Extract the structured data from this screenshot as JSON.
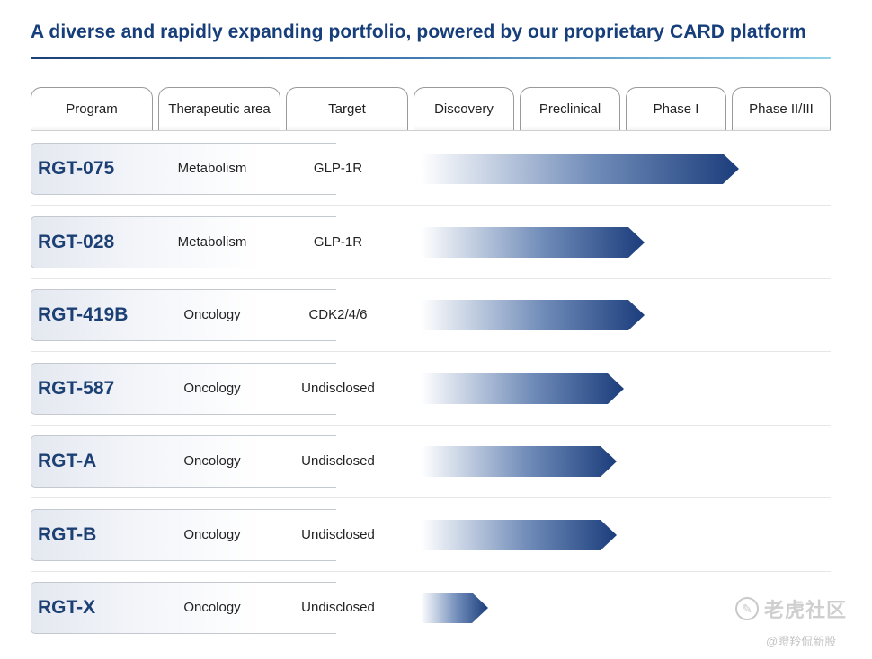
{
  "title": "A diverse and rapidly expanding portfolio, powered by our proprietary CARD platform",
  "colors": {
    "accent": "#163e7a",
    "bar_dark": "#1b3d7c",
    "bar_light": "#ffffff"
  },
  "headers": [
    "Program",
    "Therapeutic area",
    "Target",
    "Discovery",
    "Preclinical",
    "Phase I",
    "Phase II/III"
  ],
  "stages": [
    "Discovery",
    "Preclinical",
    "Phase I",
    "Phase II/III"
  ],
  "programs": [
    {
      "name": "RGT-075",
      "area": "Metabolism",
      "target": "GLP-1R",
      "progress_stages": 3.05
    },
    {
      "name": "RGT-028",
      "area": "Metabolism",
      "target": "GLP-1R",
      "progress_stages": 2.15
    },
    {
      "name": "RGT-419B",
      "area": "Oncology",
      "target": "CDK2/4/6",
      "progress_stages": 2.15
    },
    {
      "name": "RGT-587",
      "area": "Oncology",
      "target": "Undisclosed",
      "progress_stages": 1.95
    },
    {
      "name": "RGT-A",
      "area": "Oncology",
      "target": "Undisclosed",
      "progress_stages": 1.88
    },
    {
      "name": "RGT-B",
      "area": "Oncology",
      "target": "Undisclosed",
      "progress_stages": 1.88
    },
    {
      "name": "RGT-X",
      "area": "Oncology",
      "target": "Undisclosed",
      "progress_stages": 0.65
    }
  ],
  "watermark": {
    "text": "老虎社区",
    "handle": "@瞪羚侃新股",
    "logo": "tiger-logo-icon"
  }
}
